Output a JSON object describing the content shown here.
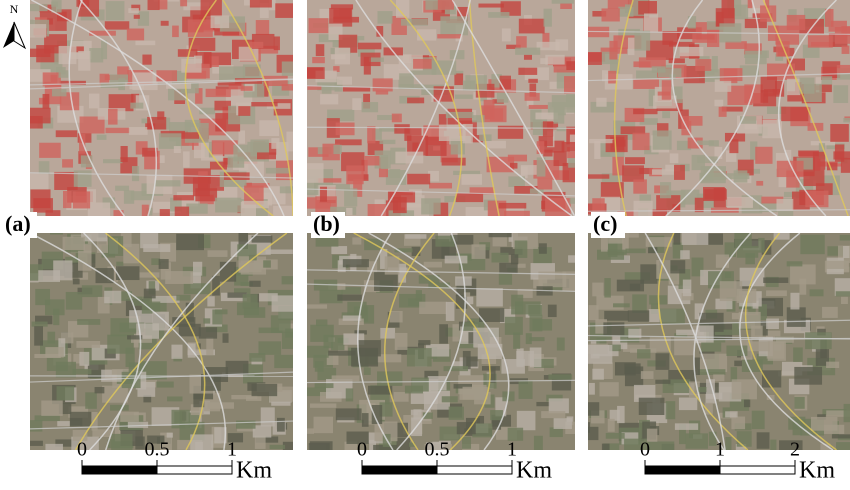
{
  "north_arrow": {
    "label": "N"
  },
  "panels": [
    {
      "label": "(a)",
      "scale_bar": {
        "ticks": [
          "0",
          "0.5",
          "1"
        ],
        "unit": "Km"
      }
    },
    {
      "label": "(b)",
      "scale_bar": {
        "ticks": [
          "0",
          "0.5",
          "1"
        ],
        "unit": "Km"
      }
    },
    {
      "label": "(c)",
      "scale_bar": {
        "ticks": [
          "0",
          "1",
          "2"
        ],
        "unit": "Km"
      }
    }
  ]
}
